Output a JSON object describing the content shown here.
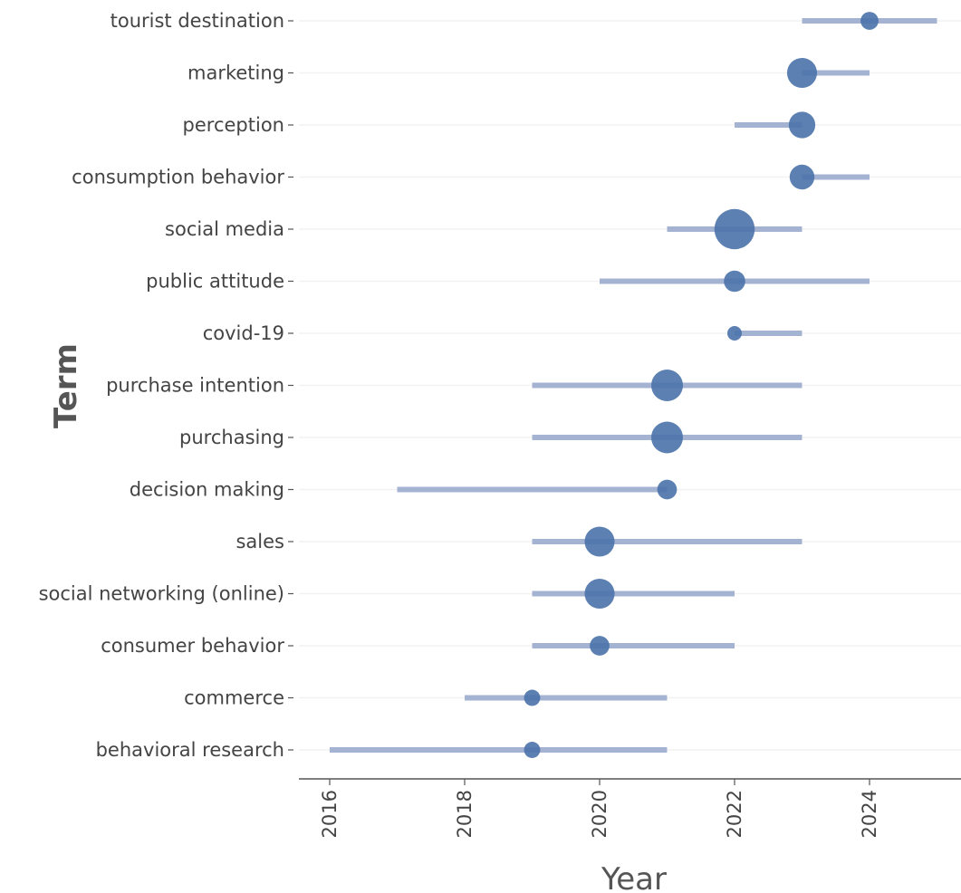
{
  "chart_data": {
    "type": "scatter",
    "xlabel": "Year",
    "ylabel": "Term",
    "xlim": [
      2015.6,
      2025.4
    ],
    "xticks": [
      "2016",
      "2018",
      "2020",
      "2022",
      "2024"
    ],
    "grid": "horizontal",
    "colors": {
      "point": "#4a72aa",
      "range": "#a5b3d3",
      "axis": "#555555",
      "grid": "#f2f2f2",
      "text": "#444444"
    },
    "terms": [
      {
        "term": "tourist destination",
        "start": 2023,
        "median": 2024,
        "end": 2025,
        "size": 1.0
      },
      {
        "term": "marketing",
        "start": 2023,
        "median": 2023,
        "end": 2024,
        "size": 1.7
      },
      {
        "term": "perception",
        "start": 2022,
        "median": 2023,
        "end": 2023,
        "size": 1.5
      },
      {
        "term": "consumption behavior",
        "start": 2023,
        "median": 2023,
        "end": 2024,
        "size": 1.4
      },
      {
        "term": "social media",
        "start": 2021,
        "median": 2022,
        "end": 2023,
        "size": 2.3
      },
      {
        "term": "public attitude",
        "start": 2020,
        "median": 2022,
        "end": 2024,
        "size": 1.2
      },
      {
        "term": "covid-19",
        "start": 2022,
        "median": 2022,
        "end": 2023,
        "size": 0.8
      },
      {
        "term": "purchase intention",
        "start": 2019,
        "median": 2021,
        "end": 2023,
        "size": 1.8
      },
      {
        "term": "purchasing",
        "start": 2019,
        "median": 2021,
        "end": 2023,
        "size": 1.8
      },
      {
        "term": "decision making",
        "start": 2017,
        "median": 2021,
        "end": 2021,
        "size": 1.1
      },
      {
        "term": "sales",
        "start": 2019,
        "median": 2020,
        "end": 2023,
        "size": 1.7
      },
      {
        "term": "social networking (online)",
        "start": 2019,
        "median": 2020,
        "end": 2022,
        "size": 1.7
      },
      {
        "term": "consumer behavior",
        "start": 2019,
        "median": 2020,
        "end": 2022,
        "size": 1.1
      },
      {
        "term": "commerce",
        "start": 2018,
        "median": 2019,
        "end": 2021,
        "size": 0.9
      },
      {
        "term": "behavioral research",
        "start": 2016,
        "median": 2019,
        "end": 2021,
        "size": 0.9
      }
    ]
  }
}
